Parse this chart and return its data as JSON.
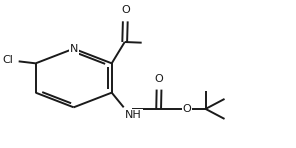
{
  "bg_color": "#ffffff",
  "line_color": "#1a1a1a",
  "line_width": 1.4,
  "font_size": 8.0,
  "fig_width": 2.96,
  "fig_height": 1.48,
  "xlim": [
    -0.08,
    1.38
  ],
  "ylim": [
    -0.02,
    1.08
  ]
}
